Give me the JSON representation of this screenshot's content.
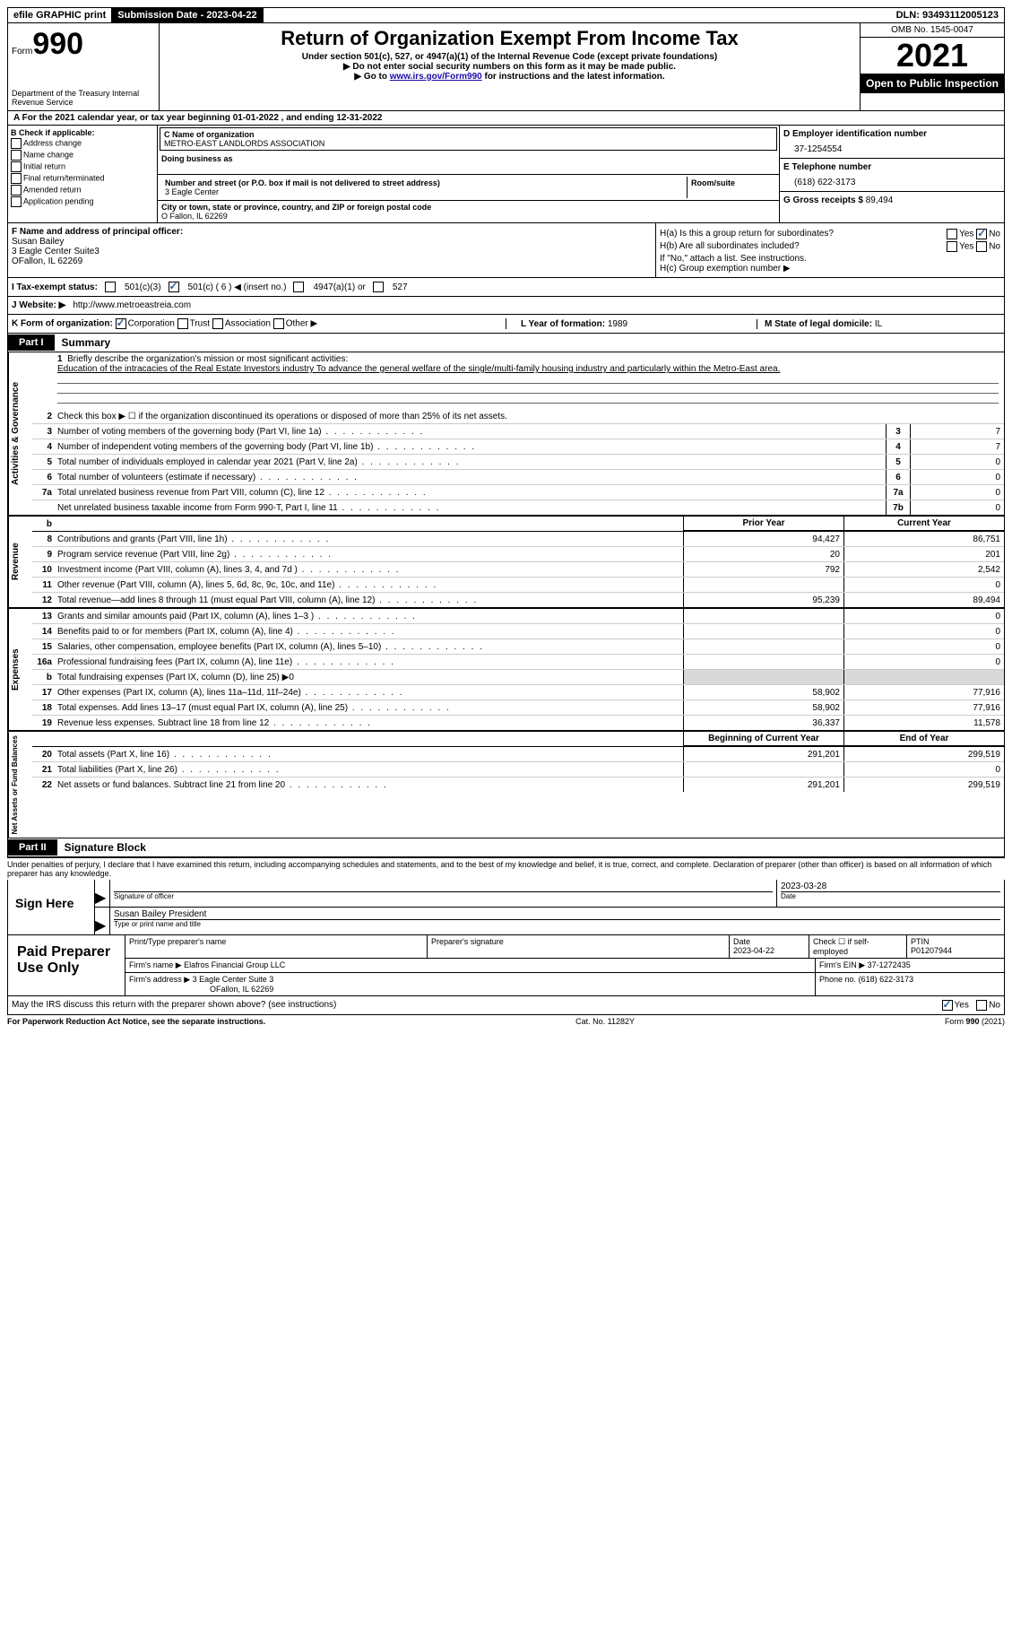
{
  "topbar": {
    "efile": "efile GRAPHIC print",
    "submission_label": "Submission Date - 2023-04-22",
    "dln_label": "DLN:",
    "dln": "93493112005123"
  },
  "header": {
    "form_label": "Form",
    "form_number": "990",
    "dept": "Department of the Treasury Internal Revenue Service",
    "title": "Return of Organization Exempt From Income Tax",
    "sub1": "Under section 501(c), 527, or 4947(a)(1) of the Internal Revenue Code (except private foundations)",
    "sub2": "▶ Do not enter social security numbers on this form as it may be made public.",
    "sub3_pre": "▶ Go to ",
    "sub3_link": "www.irs.gov/Form990",
    "sub3_post": " for instructions and the latest information.",
    "omb": "OMB No. 1545-0047",
    "year": "2021",
    "inspection": "Open to Public Inspection"
  },
  "rowA": "A For the 2021 calendar year, or tax year beginning 01-01-2022   , and ending 12-31-2022",
  "boxB": {
    "label": "B Check if applicable:",
    "items": [
      "Address change",
      "Name change",
      "Initial return",
      "Final return/terminated",
      "Amended return",
      "Application pending"
    ]
  },
  "boxC": {
    "name_label": "C Name of organization",
    "name": "METRO-EAST LANDLORDS ASSOCIATION",
    "dba_label": "Doing business as",
    "street_label": "Number and street (or P.O. box if mail is not delivered to street address)",
    "suite_label": "Room/suite",
    "street": "3 Eagle Center",
    "city_label": "City or town, state or province, country, and ZIP or foreign postal code",
    "city": "O Fallon, IL  62269"
  },
  "boxD": {
    "label": "D Employer identification number",
    "value": "37-1254554"
  },
  "boxE": {
    "label": "E Telephone number",
    "value": "(618) 622-3173"
  },
  "boxG": {
    "label": "G Gross receipts $",
    "value": "89,494"
  },
  "boxF": {
    "label": "F Name and address of principal officer:",
    "name": "Susan Bailey",
    "addr1": "3 Eagle Center Suite3",
    "addr2": "OFallon, IL  62269"
  },
  "boxH": {
    "a_label": "H(a)  Is this a group return for subordinates?",
    "b_label": "H(b)  Are all subordinates included?",
    "note": "If \"No,\" attach a list. See instructions.",
    "c_label": "H(c)  Group exemption number ▶",
    "yes": "Yes",
    "no": "No"
  },
  "rowI": {
    "label": "I   Tax-exempt status:",
    "opt1": "501(c)(3)",
    "opt2": "501(c) ( 6 ) ◀ (insert no.)",
    "opt3": "4947(a)(1) or",
    "opt4": "527"
  },
  "rowJ": {
    "label": "J   Website: ▶",
    "value": "http://www.metroeastreia.com"
  },
  "rowK": {
    "label": "K Form of organization:",
    "corp": "Corporation",
    "trust": "Trust",
    "assoc": "Association",
    "other": "Other ▶"
  },
  "rowL": {
    "year_label": "L Year of formation: ",
    "year": "1989",
    "state_label": "M State of legal domicile: ",
    "state": "IL"
  },
  "part1": {
    "tag": "Part I",
    "title": "Summary"
  },
  "sideLabels": {
    "ag": "Activities & Governance",
    "rev": "Revenue",
    "exp": "Expenses",
    "na": "Net Assets or Fund Balances"
  },
  "line1": {
    "num": "1",
    "desc": "Briefly describe the organization's mission or most significant activities:",
    "text": "Education of the intracacies of the Real Estate Investors industry To advance the general welfare of the single/multi-family housing industry and particularly within the Metro-East area."
  },
  "line2": {
    "num": "2",
    "desc": "Check this box ▶ ☐ if the organization discontinued its operations or disposed of more than 25% of its net assets."
  },
  "lines_ag": [
    {
      "num": "3",
      "desc": "Number of voting members of the governing body (Part VI, line 1a)",
      "box": "3",
      "val": "7"
    },
    {
      "num": "4",
      "desc": "Number of independent voting members of the governing body (Part VI, line 1b)",
      "box": "4",
      "val": "7"
    },
    {
      "num": "5",
      "desc": "Total number of individuals employed in calendar year 2021 (Part V, line 2a)",
      "box": "5",
      "val": "0"
    },
    {
      "num": "6",
      "desc": "Total number of volunteers (estimate if necessary)",
      "box": "6",
      "val": "0"
    },
    {
      "num": "7a",
      "desc": "Total unrelated business revenue from Part VIII, column (C), line 12",
      "box": "7a",
      "val": "0"
    },
    {
      "num": "",
      "desc": "Net unrelated business taxable income from Form 990-T, Part I, line 11",
      "box": "7b",
      "val": "0"
    }
  ],
  "colhdr": {
    "num": "b",
    "prior": "Prior Year",
    "curr": "Current Year"
  },
  "lines_rev": [
    {
      "num": "8",
      "desc": "Contributions and grants (Part VIII, line 1h)",
      "prior": "94,427",
      "curr": "86,751"
    },
    {
      "num": "9",
      "desc": "Program service revenue (Part VIII, line 2g)",
      "prior": "20",
      "curr": "201"
    },
    {
      "num": "10",
      "desc": "Investment income (Part VIII, column (A), lines 3, 4, and 7d )",
      "prior": "792",
      "curr": "2,542"
    },
    {
      "num": "11",
      "desc": "Other revenue (Part VIII, column (A), lines 5, 6d, 8c, 9c, 10c, and 11e)",
      "prior": "",
      "curr": "0"
    },
    {
      "num": "12",
      "desc": "Total revenue—add lines 8 through 11 (must equal Part VIII, column (A), line 12)",
      "prior": "95,239",
      "curr": "89,494"
    }
  ],
  "lines_exp": [
    {
      "num": "13",
      "desc": "Grants and similar amounts paid (Part IX, column (A), lines 1–3 )",
      "prior": "",
      "curr": "0"
    },
    {
      "num": "14",
      "desc": "Benefits paid to or for members (Part IX, column (A), line 4)",
      "prior": "",
      "curr": "0"
    },
    {
      "num": "15",
      "desc": "Salaries, other compensation, employee benefits (Part IX, column (A), lines 5–10)",
      "prior": "",
      "curr": "0"
    },
    {
      "num": "16a",
      "desc": "Professional fundraising fees (Part IX, column (A), line 11e)",
      "prior": "",
      "curr": "0"
    },
    {
      "num": "b",
      "desc": "Total fundraising expenses (Part IX, column (D), line 25) ▶0",
      "shade": true
    },
    {
      "num": "17",
      "desc": "Other expenses (Part IX, column (A), lines 11a–11d, 11f–24e)",
      "prior": "58,902",
      "curr": "77,916"
    },
    {
      "num": "18",
      "desc": "Total expenses. Add lines 13–17 (must equal Part IX, column (A), line 25)",
      "prior": "58,902",
      "curr": "77,916"
    },
    {
      "num": "19",
      "desc": "Revenue less expenses. Subtract line 18 from line 12",
      "prior": "36,337",
      "curr": "11,578"
    }
  ],
  "colhdr2": {
    "prior": "Beginning of Current Year",
    "curr": "End of Year"
  },
  "lines_na": [
    {
      "num": "20",
      "desc": "Total assets (Part X, line 16)",
      "prior": "291,201",
      "curr": "299,519"
    },
    {
      "num": "21",
      "desc": "Total liabilities (Part X, line 26)",
      "prior": "",
      "curr": "0"
    },
    {
      "num": "22",
      "desc": "Net assets or fund balances. Subtract line 21 from line 20",
      "prior": "291,201",
      "curr": "299,519"
    }
  ],
  "part2": {
    "tag": "Part II",
    "title": "Signature Block"
  },
  "penalties": "Under penalties of perjury, I declare that I have examined this return, including accompanying schedules and statements, and to the best of my knowledge and belief, it is true, correct, and complete. Declaration of preparer (other than officer) is based on all information of which preparer has any knowledge.",
  "sign": {
    "here": "Sign Here",
    "sig_label": "Signature of officer",
    "date_label": "Date",
    "date": "2023-03-28",
    "name": "Susan Bailey  President",
    "name_label": "Type or print name and title"
  },
  "prep": {
    "label": "Paid Preparer Use Only",
    "pt_name_label": "Print/Type preparer's name",
    "sig_label": "Preparer's signature",
    "date_label": "Date",
    "date": "2023-04-22",
    "self_label": "Check ☐ if self-employed",
    "ptin_label": "PTIN",
    "ptin": "P01207944",
    "firm_name_label": "Firm's name    ▶",
    "firm_name": "Elafros Financial Group LLC",
    "firm_ein_label": "Firm's EIN ▶",
    "firm_ein": "37-1272435",
    "firm_addr_label": "Firm's address ▶",
    "firm_addr1": "3 Eagle Center Suite 3",
    "firm_addr2": "OFallon, IL  62269",
    "phone_label": "Phone no.",
    "phone": "(618) 622-3173"
  },
  "discuss": {
    "text": "May the IRS discuss this return with the preparer shown above? (see instructions)",
    "yes": "Yes",
    "no": "No"
  },
  "footer": {
    "left": "For Paperwork Reduction Act Notice, see the separate instructions.",
    "mid": "Cat. No. 11282Y",
    "right": "Form 990 (2021)"
  }
}
